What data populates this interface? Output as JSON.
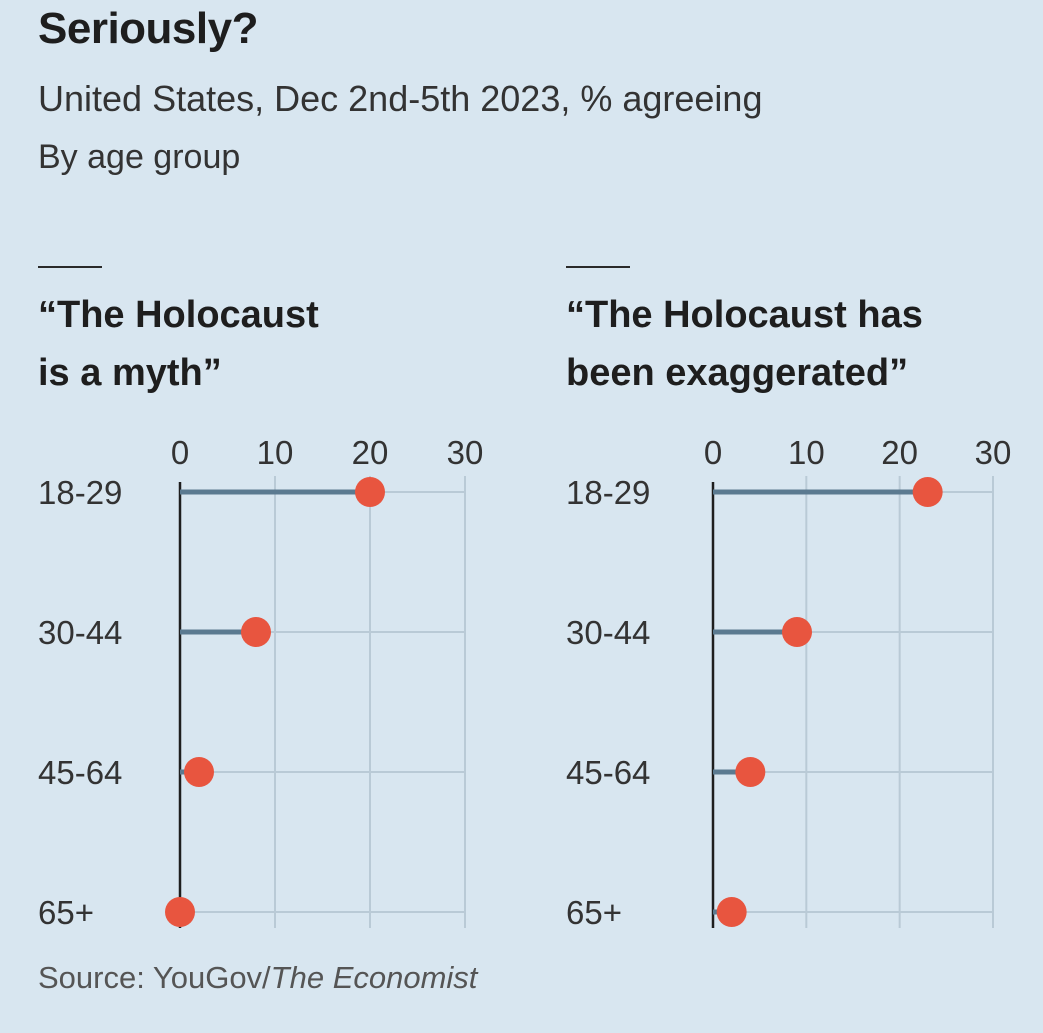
{
  "header": {
    "title": "Seriously?",
    "subtitle": "United States, Dec 2nd-5th 2023, % agreeing",
    "subsubtitle": "By age group"
  },
  "source": {
    "prefix": "Source: YouGov/",
    "publication": "The Economist"
  },
  "colors": {
    "background": "#d8e6f0",
    "dot": "#e8553f",
    "stem": "#5b7a90",
    "grid": "#b9cad6",
    "axis": "#1e1e1e"
  },
  "chart_data": [
    {
      "type": "lollipop",
      "title_lines": [
        "“The Holocaust",
        "is a myth”"
      ],
      "categories": [
        "18-29",
        "30-44",
        "45-64",
        "65+"
      ],
      "values": [
        20,
        8,
        2,
        0
      ],
      "ticks": [
        0,
        10,
        20,
        30
      ],
      "xlim": [
        0,
        30
      ],
      "grid": true
    },
    {
      "type": "lollipop",
      "title_lines": [
        "“The Holocaust has",
        "been exaggerated”"
      ],
      "categories": [
        "18-29",
        "30-44",
        "45-64",
        "65+"
      ],
      "values": [
        23,
        9,
        4,
        2
      ],
      "ticks": [
        0,
        10,
        20,
        30
      ],
      "xlim": [
        0,
        30
      ],
      "grid": true
    }
  ]
}
